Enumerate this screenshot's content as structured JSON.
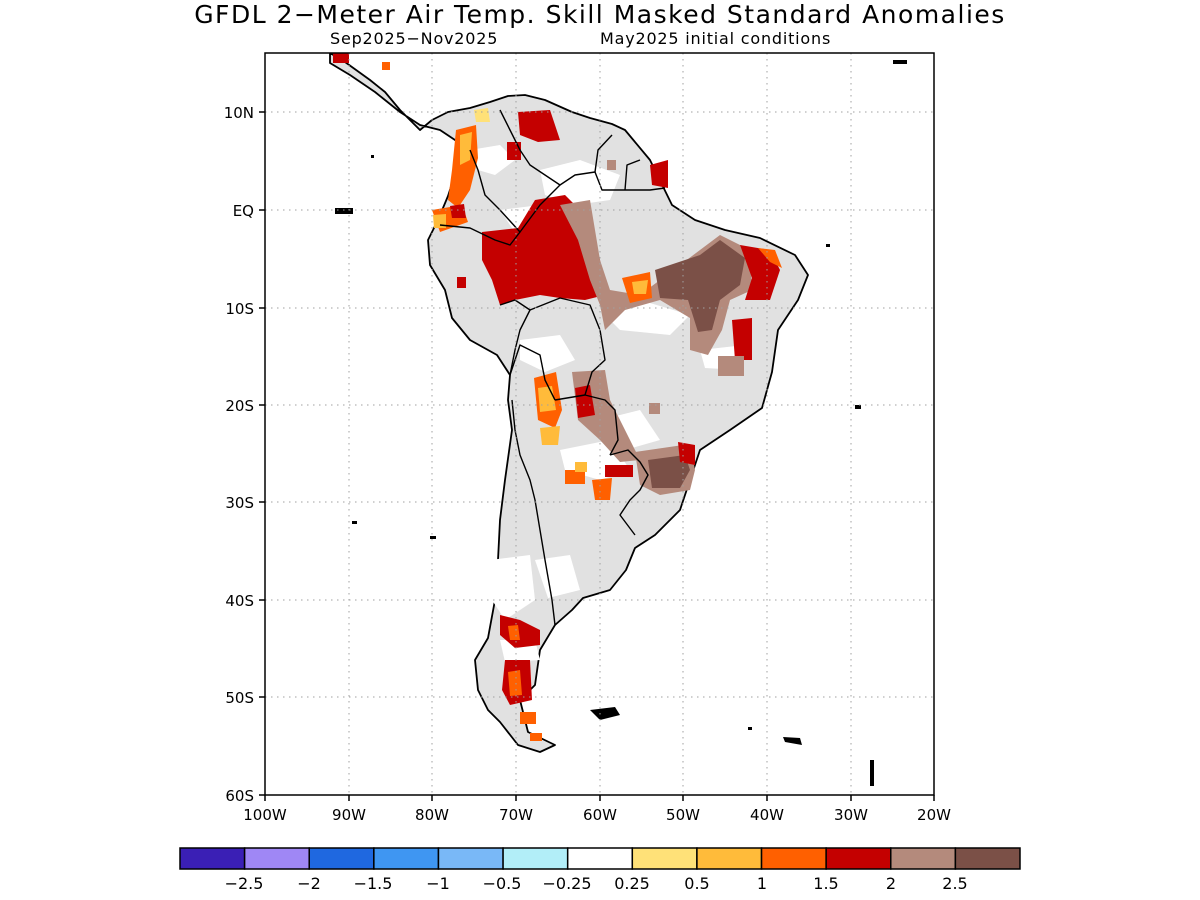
{
  "title": "GFDL 2−Meter Air Temp. Skill Masked Standard Anomalies",
  "subtitle_period": "Sep2025−Nov2025",
  "subtitle_init": "May2025 initial conditions",
  "axes": {
    "lat_labels": [
      "10N",
      "EQ",
      "10S",
      "20S",
      "30S",
      "40S",
      "50S",
      "60S"
    ],
    "lon_labels": [
      "100W",
      "90W",
      "80W",
      "70W",
      "60W",
      "50W",
      "40W",
      "30W",
      "20W"
    ],
    "lat_range": [
      -60,
      15
    ],
    "lon_range": [
      -100,
      -20
    ],
    "grid": "dotted"
  },
  "colorbar": {
    "labels": [
      "−2.5",
      "−2",
      "−1.5",
      "−1",
      "−0.5",
      "−0.25",
      "0.25",
      "0.5",
      "1",
      "1.5",
      "2",
      "2.5"
    ],
    "colors": [
      "#3a1fb5",
      "#9f87f5",
      "#1f68e0",
      "#3f96f2",
      "#79b8f7",
      "#b2eef8",
      "#ffffff",
      "#ffe178",
      "#ffbb3a",
      "#ff6000",
      "#c40000",
      "#b48a7c",
      "#7b5047"
    ]
  },
  "legend_colors": {
    "land_unskilled": "#e1e1e1",
    "coast": "#000000"
  }
}
